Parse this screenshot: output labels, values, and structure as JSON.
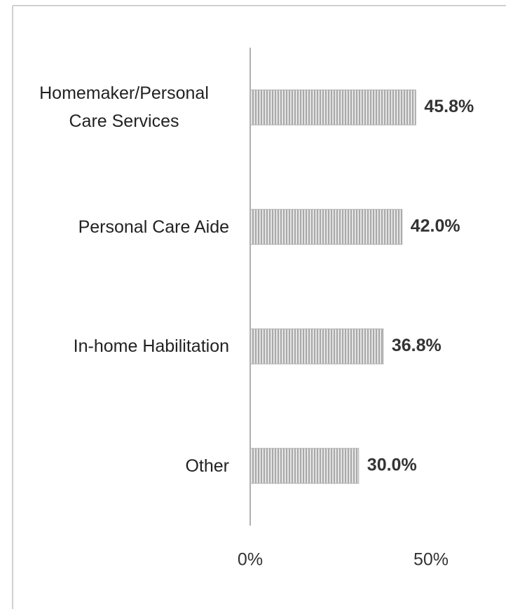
{
  "chart_data": {
    "type": "barh",
    "categories": [
      "Homemaker/Personal Care Services",
      "Personal Care Aide",
      "In-home Habilitation",
      "Other"
    ],
    "values": [
      45.8,
      42.0,
      36.8,
      30.0
    ],
    "value_labels": [
      "45.8%",
      "42.0%",
      "36.8%",
      "30.0%"
    ],
    "xlim": [
      0,
      50
    ],
    "xticks": [
      {
        "value": 0,
        "label": "0%"
      },
      {
        "value": 50,
        "label": "50%"
      }
    ],
    "color": "#a9a9a9"
  }
}
